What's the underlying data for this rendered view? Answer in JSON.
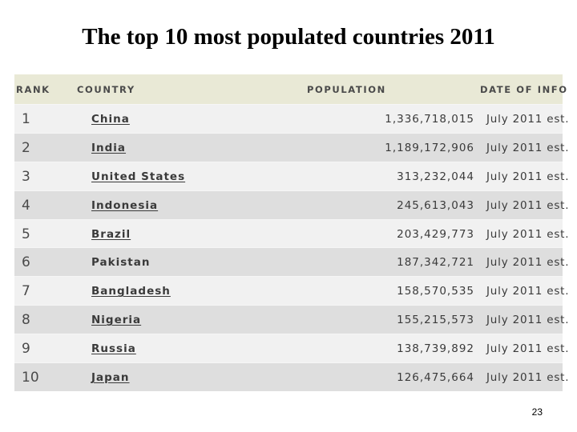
{
  "slide": {
    "title": "The top 10 most populated countries 2011",
    "page_number": "23"
  },
  "table": {
    "headers": {
      "rank": "RANK",
      "country": "COUNTRY",
      "population": "POPULATION",
      "date": "DATE OF INFO"
    },
    "rows": [
      {
        "rank": "1",
        "country": "China",
        "population": "1,336,718,015",
        "date": "July 2011 est."
      },
      {
        "rank": "2",
        "country": "India",
        "population": "1,189,172,906",
        "date": "July 2011 est."
      },
      {
        "rank": "3",
        "country": "United States",
        "population": "313,232,044",
        "date": "July 2011 est."
      },
      {
        "rank": "4",
        "country": "Indonesia",
        "population": "245,613,043",
        "date": "July 2011 est."
      },
      {
        "rank": "5",
        "country": "Brazil",
        "population": "203,429,773",
        "date": "July 2011 est."
      },
      {
        "rank": "6",
        "country": "Pakistan",
        "population": "187,342,721",
        "date": "July 2011 est."
      },
      {
        "rank": "7",
        "country": "Bangladesh",
        "population": "158,570,535",
        "date": "July 2011 est."
      },
      {
        "rank": "8",
        "country": "Nigeria",
        "population": "155,215,573",
        "date": "July 2011 est."
      },
      {
        "rank": "9",
        "country": "Russia",
        "population": "138,739,892",
        "date": "July 2011 est."
      },
      {
        "rank": "10",
        "country": "Japan",
        "population": "126,475,664",
        "date": "July 2011 est."
      }
    ]
  }
}
